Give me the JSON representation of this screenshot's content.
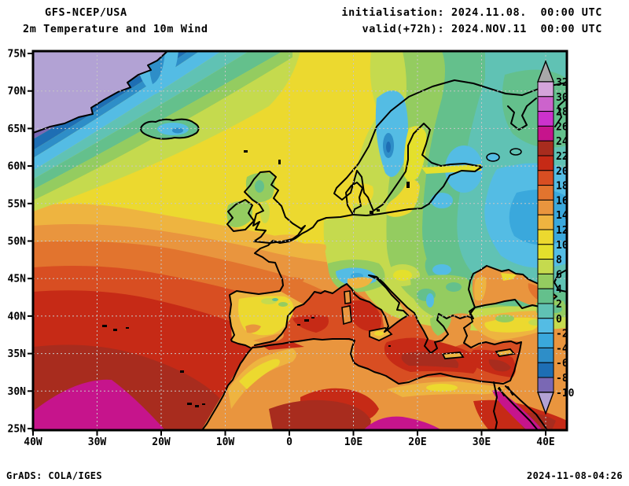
{
  "header": {
    "title": "GFS-NCEP/USA",
    "subtitle": "2m Temperature and 10m Wind",
    "init": "initialisation: 2024.11.08.  00:00 UTC",
    "valid": "valid(+72h): 2024.NOV.11  00:00 UTC"
  },
  "footer": {
    "left": "GrADS: COLA/IGES",
    "right": "2024-11-08-04:26"
  },
  "axes": {
    "lat_labels": [
      "75N",
      "70N",
      "65N",
      "60N",
      "55N",
      "50N",
      "45N",
      "40N",
      "35N",
      "30N",
      "25N"
    ],
    "lon_labels": [
      "40W",
      "30W",
      "20W",
      "10W",
      "0",
      "10E",
      "20E",
      "30E",
      "40E"
    ]
  },
  "colorbar": {
    "tick_labels": [
      "32",
      "30",
      "28",
      "26",
      "24",
      "22",
      "20",
      "18",
      "16",
      "14",
      "12",
      "10",
      "8",
      "6",
      "4",
      "2",
      "0",
      "-2",
      "-4",
      "-6",
      "-8",
      "-10"
    ],
    "band_colors": [
      "#d4a4da",
      "#cc63cc",
      "#cc32cc",
      "#c6148c",
      "#a82c1e",
      "#c62a16",
      "#d84e22",
      "#e2742e",
      "#e9953e",
      "#eeb440",
      "#ecd92f",
      "#e4e02c",
      "#c5da4e",
      "#94cc60",
      "#64c08c",
      "#60c2b4",
      "#54bce4",
      "#3aa8dc",
      "#2e8ec8",
      "#1e6eb4",
      "#7a68b4"
    ],
    "over_color": "#a8a8a8",
    "under_color": "#b2a2d4",
    "outline_color": "#000000"
  }
}
